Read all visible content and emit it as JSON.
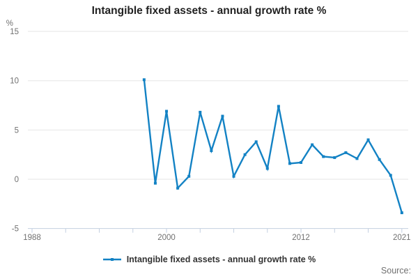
{
  "title": "Intangible fixed assets - annual growth rate %",
  "source_label": "Source:",
  "legend": {
    "label": "Intangible fixed assets - annual growth rate %"
  },
  "axes": {
    "y_unit": "%",
    "y_tick_labels": [
      "15",
      "10",
      "5",
      "0",
      "-5"
    ],
    "x_tick_labels": [
      "1988",
      "2000",
      "2012",
      "2021"
    ]
  },
  "colors": {
    "line": "#1382c4",
    "grid": "#e6e6e6",
    "axis": "#c3cfe0",
    "tick_label": "#707070",
    "title": "#222222"
  },
  "chart_data": {
    "type": "line",
    "title": "Intangible fixed assets - annual growth rate %",
    "series_name": "Intangible fixed assets - annual growth rate %",
    "x": [
      1998,
      1999,
      2000,
      2001,
      2002,
      2003,
      2004,
      2005,
      2006,
      2007,
      2008,
      2009,
      2010,
      2011,
      2012,
      2013,
      2014,
      2015,
      2016,
      2017,
      2018,
      2019,
      2020,
      2021
    ],
    "values": [
      10.1,
      -0.4,
      6.9,
      -0.9,
      0.3,
      6.8,
      2.9,
      6.4,
      0.3,
      2.5,
      3.8,
      1.1,
      7.4,
      1.6,
      1.7,
      3.5,
      2.3,
      2.2,
      2.7,
      2.1,
      4.0,
      2.0,
      0.4,
      -3.4
    ],
    "xlabel": "",
    "ylabel": "%",
    "xlim": [
      1988,
      2021
    ],
    "ylim": [
      -5,
      15
    ],
    "y_gridlines": [
      15,
      10,
      5,
      0
    ],
    "y_axis_ticks": [
      15,
      10,
      5,
      0,
      -5
    ],
    "x_axis_tick_years_start": 1988,
    "x_axis_tick_step": 3,
    "x_labeled_years": [
      1988,
      2000,
      2012,
      2021
    ],
    "grid": true,
    "legend_position": "bottom"
  }
}
